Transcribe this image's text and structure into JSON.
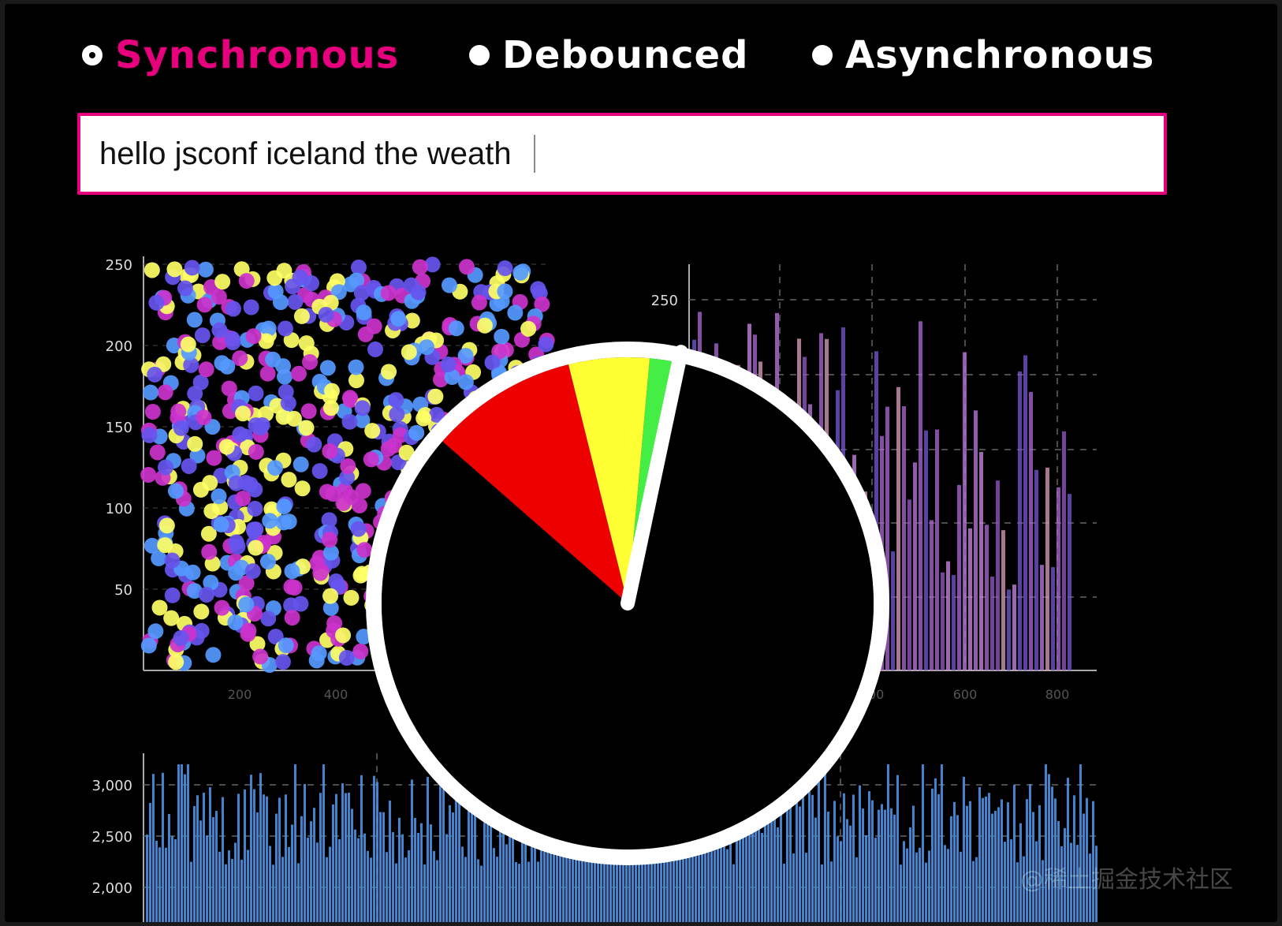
{
  "mode_selector": {
    "options": [
      {
        "label": "Synchronous",
        "selected": true
      },
      {
        "label": "Debounced",
        "selected": false
      },
      {
        "label": "Asynchronous",
        "selected": false
      }
    ]
  },
  "text_input": {
    "value": "hello jsconf iceland the weath"
  },
  "colors": {
    "accent": "#e6007e",
    "background": "#000000"
  },
  "watermark": "@稀土掘金技术社区",
  "chart_data": [
    {
      "type": "scatter",
      "y_ticks": [
        "250",
        "200",
        "150",
        "100",
        "50"
      ],
      "x_ticks": [
        "200",
        "400"
      ],
      "ylim": [
        0,
        250
      ],
      "series_colors": [
        "#ffff66",
        "#5599ff",
        "#cc33cc",
        "#6655ee"
      ]
    },
    {
      "type": "bar",
      "y_ticks": [
        "250"
      ],
      "x_ticks": [
        "400",
        "600",
        "800"
      ],
      "ylim": [
        0,
        250
      ],
      "color": "#b06ad8"
    },
    {
      "type": "bar",
      "y_ticks": [
        "3,000",
        "2,500",
        "2,000"
      ],
      "ylim": [
        2000,
        3000
      ],
      "color": "#4a90e2"
    },
    {
      "type": "pie",
      "slices": [
        {
          "label": "green",
          "value": 1.9,
          "color": "#44ee44"
        },
        {
          "label": "yellow",
          "value": 5.3,
          "color": "#ffff33"
        },
        {
          "label": "red",
          "value": 9.7,
          "color": "#ee0000"
        },
        {
          "label": "black",
          "value": 83.1,
          "color": "#000000"
        }
      ]
    }
  ]
}
